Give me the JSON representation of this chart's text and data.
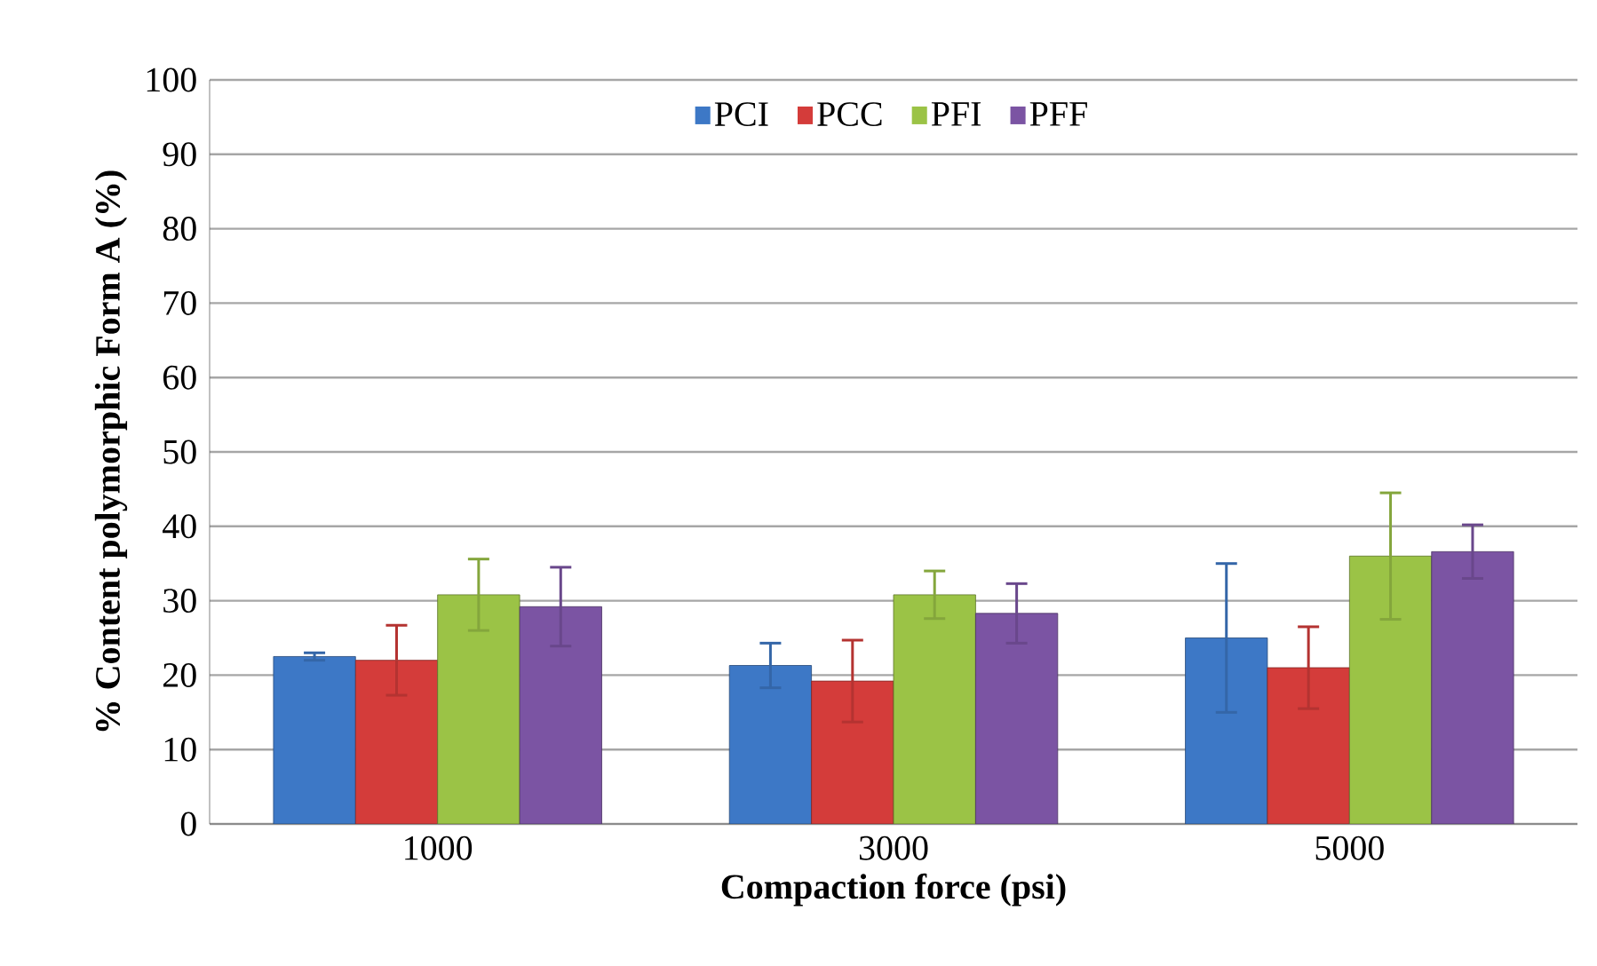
{
  "chart_data": {
    "type": "bar",
    "xlabel": "Compaction force (psi)",
    "ylabel": "% Content polymorphic Form A (%)",
    "categories": [
      "1000",
      "3000",
      "5000"
    ],
    "series": [
      {
        "name": "PCI",
        "color": "#3d78c6",
        "values": [
          22.5,
          21.3,
          25.0
        ],
        "errors": [
          0.5,
          3,
          10
        ]
      },
      {
        "name": "PCC",
        "color": "#d43c3a",
        "values": [
          22.0,
          19.2,
          21.0
        ],
        "errors": [
          4.7,
          5.5,
          5.5
        ]
      },
      {
        "name": "PFI",
        "color": "#9bc346",
        "values": [
          30.8,
          30.8,
          36.0
        ],
        "errors": [
          4.8,
          3.2,
          8.5
        ]
      },
      {
        "name": "PFF",
        "color": "#7b54a3",
        "values": [
          29.2,
          28.3,
          36.6
        ],
        "errors": [
          5.3,
          4,
          3.6
        ]
      }
    ],
    "ylim": [
      0,
      100
    ],
    "yticks": [
      0,
      10,
      20,
      30,
      40,
      50,
      60,
      70,
      80,
      90,
      100
    ],
    "grid": "y",
    "legend": "top"
  }
}
